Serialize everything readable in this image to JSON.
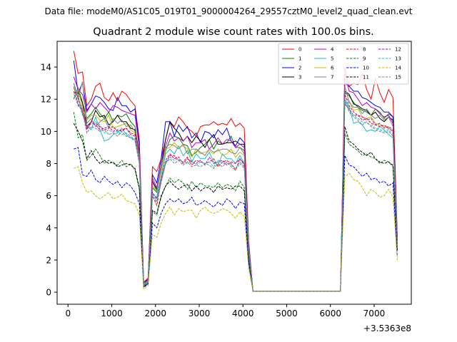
{
  "figure": {
    "header": "Data file: modeM0/AS1C05_019T01_9000004264_29557cztM0_level2_quad_clean.evt"
  },
  "chart_data": {
    "type": "line",
    "title": "Quadrant 2 module wise count rates with 100.0s bins.",
    "xlabel": "",
    "ylabel": "",
    "x_offset_label": "+3.5363e8",
    "xlim": [
      -250,
      7850
    ],
    "ylim": [
      -0.75,
      15.6
    ],
    "x_ticks": [
      0,
      1000,
      2000,
      3000,
      4000,
      5000,
      6000,
      7000
    ],
    "y_ticks": [
      0,
      2,
      4,
      6,
      8,
      10,
      12,
      14
    ],
    "x_tick_labels": [
      "0",
      "1000",
      "2000",
      "3000",
      "4000",
      "5000",
      "6000",
      "7000"
    ],
    "y_tick_labels": [
      "0",
      "2",
      "4",
      "6",
      "8",
      "10",
      "12",
      "14"
    ],
    "legend_position": "top-right",
    "legend_columns": 4,
    "x": [
      130,
      230,
      330,
      430,
      530,
      630,
      730,
      830,
      930,
      1030,
      1130,
      1230,
      1330,
      1430,
      1530,
      1630,
      1730,
      1830,
      1930,
      2030,
      2130,
      2230,
      2330,
      2430,
      2530,
      2630,
      2730,
      2830,
      2930,
      3030,
      3130,
      3230,
      3330,
      3430,
      3530,
      3630,
      3730,
      3830,
      3930,
      4030,
      4130,
      4230,
      4330,
      4430,
      6230,
      6330,
      6430,
      6530,
      6630,
      6730,
      6830,
      6930,
      7030,
      7130,
      7230,
      7330,
      7430,
      7530
    ],
    "series": [
      {
        "name": "0",
        "color": "#ff0000",
        "dashed": false,
        "values": [
          15.0,
          13.6,
          13.7,
          11.6,
          12.0,
          12.8,
          13.0,
          12.1,
          11.9,
          12.4,
          11.9,
          12.5,
          12.3,
          11.9,
          11.6,
          9.5,
          0.6,
          0.9,
          7.8,
          7.5,
          8.3,
          9.5,
          10.6,
          10.3,
          10.9,
          10.6,
          10.2,
          10.0,
          9.7,
          10.3,
          10.4,
          10.4,
          10.6,
          10.4,
          10.5,
          10.4,
          10.8,
          10.3,
          10.5,
          10.2,
          3.2,
          0.05,
          0.05,
          0.05,
          0.05,
          14.0,
          12.8,
          13.0,
          12.9,
          13.6,
          12.6,
          12.0,
          13.3,
          12.4,
          11.8,
          12.6,
          12.1,
          3.5
        ]
      },
      {
        "name": "1",
        "color": "#008000",
        "dashed": false,
        "values": [
          12.0,
          12.7,
          11.8,
          10.8,
          11.1,
          11.5,
          11.1,
          10.8,
          11.2,
          10.6,
          11.0,
          10.9,
          11.1,
          10.6,
          10.3,
          8.4,
          0.5,
          0.8,
          6.5,
          6.2,
          7.6,
          8.8,
          9.5,
          9.7,
          9.6,
          9.2,
          9.1,
          8.5,
          8.7,
          9.0,
          9.2,
          9.5,
          8.9,
          9.4,
          9.2,
          9.3,
          9.7,
          9.0,
          9.0,
          8.8,
          2.8,
          0.05,
          0.05,
          0.05,
          0.05,
          12.4,
          12.2,
          11.8,
          11.5,
          11.3,
          11.2,
          11.0,
          11.4,
          11.2,
          10.8,
          11.1,
          10.9,
          3.2
        ]
      },
      {
        "name": "2",
        "color": "#0000ff",
        "dashed": false,
        "values": [
          14.4,
          12.4,
          13.0,
          11.3,
          11.7,
          12.2,
          12.1,
          11.8,
          11.4,
          11.3,
          12.1,
          11.6,
          11.6,
          11.2,
          11.4,
          9.2,
          0.6,
          0.8,
          7.3,
          6.8,
          8.3,
          10.6,
          10.6,
          9.7,
          10.4,
          10.0,
          10.3,
          9.6,
          9.9,
          9.3,
          10.0,
          9.9,
          9.6,
          10.1,
          9.8,
          10.2,
          9.4,
          9.1,
          9.6,
          9.3,
          3.0,
          0.05,
          0.05,
          0.05,
          0.05,
          13.0,
          12.8,
          12.5,
          12.5,
          12.1,
          12.0,
          11.8,
          11.6,
          11.5,
          11.2,
          11.2,
          10.9,
          3.4
        ]
      },
      {
        "name": "3",
        "color": "#000000",
        "dashed": false,
        "values": [
          12.4,
          12.4,
          11.8,
          10.3,
          10.6,
          11.3,
          10.9,
          11.0,
          10.4,
          10.6,
          11.0,
          10.6,
          10.6,
          10.2,
          10.1,
          8.7,
          0.4,
          0.7,
          6.9,
          6.4,
          7.9,
          9.5,
          10.6,
          10.2,
          9.9,
          9.4,
          9.7,
          9.3,
          9.7,
          9.4,
          9.0,
          9.5,
          9.8,
          9.2,
          9.2,
          9.3,
          9.3,
          9.4,
          9.2,
          9.2,
          2.9,
          0.05,
          0.05,
          0.05,
          0.05,
          12.5,
          12.3,
          11.7,
          11.6,
          11.4,
          11.3,
          11.0,
          11.2,
          10.8,
          10.6,
          10.9,
          10.7,
          3.2
        ]
      },
      {
        "name": "4",
        "color": "#bf00bf",
        "dashed": false,
        "values": [
          13.4,
          12.6,
          12.3,
          11.2,
          11.7,
          11.4,
          11.8,
          11.5,
          11.2,
          11.6,
          11.5,
          11.3,
          11.2,
          11.1,
          11.0,
          9.0,
          0.5,
          0.7,
          7.1,
          6.5,
          7.9,
          9.1,
          9.9,
          9.4,
          9.6,
          9.4,
          9.7,
          9.0,
          9.3,
          9.3,
          9.5,
          8.9,
          9.2,
          9.6,
          9.2,
          9.5,
          9.4,
          9.0,
          9.2,
          9.0,
          2.9,
          0.05,
          0.05,
          0.05,
          0.05,
          13.6,
          12.5,
          12.4,
          12.0,
          11.6,
          11.8,
          11.5,
          11.4,
          11.1,
          10.9,
          11.0,
          10.5,
          3.2
        ]
      },
      {
        "name": "5",
        "color": "#17becf",
        "dashed": false,
        "values": [
          13.0,
          12.2,
          11.1,
          10.3,
          10.1,
          10.9,
          10.1,
          9.4,
          9.5,
          9.8,
          9.9,
          10.2,
          9.8,
          9.6,
          9.5,
          8.2,
          0.4,
          0.7,
          6.1,
          5.9,
          7.2,
          8.6,
          8.9,
          8.6,
          9.1,
          8.5,
          8.8,
          8.1,
          8.6,
          8.3,
          8.3,
          8.7,
          8.1,
          7.9,
          8.6,
          8.3,
          8.3,
          8.0,
          8.5,
          8.0,
          2.6,
          0.05,
          0.05,
          0.05,
          0.05,
          12.0,
          11.5,
          10.5,
          10.6,
          10.4,
          10.0,
          10.1,
          10.0,
          10.3,
          10.1,
          9.8,
          9.6,
          3.0
        ]
      },
      {
        "name": "6",
        "color": "#bfbf00",
        "dashed": false,
        "values": [
          12.1,
          12.6,
          11.5,
          10.7,
          11.0,
          11.0,
          10.7,
          10.6,
          11.0,
          10.2,
          10.3,
          10.4,
          10.5,
          10.1,
          9.9,
          8.3,
          0.5,
          0.7,
          6.6,
          6.3,
          7.5,
          8.9,
          9.0,
          9.3,
          9.0,
          9.1,
          8.9,
          8.4,
          8.9,
          8.6,
          8.7,
          8.8,
          8.6,
          8.9,
          8.5,
          8.6,
          8.9,
          8.4,
          8.7,
          8.5,
          2.7,
          0.05,
          0.05,
          0.05,
          0.05,
          12.1,
          11.9,
          11.3,
          11.4,
          10.9,
          10.8,
          10.9,
          10.5,
          10.4,
          10.3,
          10.2,
          10.0,
          3.1
        ]
      },
      {
        "name": "7",
        "color": "#808080",
        "dashed": false,
        "values": [
          13.0,
          12.0,
          13.1,
          10.5,
          10.8,
          10.3,
          10.6,
          10.8,
          10.2,
          10.8,
          10.5,
          10.7,
          10.3,
          10.4,
          10.0,
          8.5,
          0.5,
          0.7,
          6.8,
          6.3,
          7.8,
          9.0,
          9.2,
          9.1,
          8.9,
          9.2,
          8.6,
          8.9,
          8.9,
          8.7,
          8.5,
          8.9,
          8.7,
          8.8,
          8.9,
          8.9,
          8.7,
          8.6,
          9.0,
          8.6,
          2.8,
          0.05,
          0.05,
          0.05,
          0.05,
          12.8,
          11.8,
          11.5,
          11.5,
          11.1,
          11.4,
          11.0,
          10.8,
          11.0,
          10.7,
          10.9,
          10.3,
          3.2
        ]
      },
      {
        "name": "8",
        "color": "#ff0000",
        "dashed": true,
        "values": [
          12.7,
          12.1,
          11.3,
          10.2,
          10.5,
          10.5,
          10.3,
          10.1,
          10.2,
          10.3,
          10.0,
          10.1,
          10.2,
          9.9,
          9.8,
          8.0,
          0.4,
          0.6,
          6.0,
          5.4,
          6.9,
          8.0,
          8.5,
          8.5,
          8.2,
          8.1,
          8.4,
          7.9,
          8.2,
          8.1,
          8.0,
          8.1,
          8.3,
          7.8,
          8.1,
          8.2,
          8.0,
          7.6,
          8.3,
          7.9,
          2.5,
          0.05,
          0.05,
          0.05,
          0.05,
          11.7,
          11.4,
          11.0,
          11.0,
          10.7,
          10.8,
          10.5,
          10.4,
          10.3,
          10.4,
          10.2,
          10.0,
          3.0
        ]
      },
      {
        "name": "9",
        "color": "#008000",
        "dashed": true,
        "values": [
          11.2,
          9.6,
          9.8,
          8.2,
          8.5,
          8.9,
          8.5,
          8.0,
          8.2,
          8.0,
          7.9,
          8.2,
          7.8,
          8.0,
          7.6,
          6.4,
          0.35,
          0.55,
          5.0,
          4.8,
          5.9,
          6.6,
          7.1,
          6.8,
          7.0,
          6.8,
          6.4,
          6.9,
          6.5,
          6.8,
          6.6,
          6.6,
          6.5,
          6.8,
          6.5,
          6.7,
          6.6,
          6.3,
          6.9,
          6.5,
          2.1,
          0.05,
          0.05,
          0.05,
          0.05,
          9.9,
          9.2,
          9.0,
          8.8,
          8.5,
          8.6,
          8.4,
          8.3,
          8.0,
          8.2,
          8.1,
          7.8,
          2.6
        ]
      },
      {
        "name": "10",
        "color": "#0000ff",
        "dashed": true,
        "values": [
          8.9,
          9.0,
          7.3,
          7.2,
          7.6,
          7.0,
          6.8,
          7.2,
          6.9,
          6.7,
          6.9,
          6.5,
          6.8,
          6.6,
          6.2,
          5.5,
          0.3,
          0.5,
          4.3,
          4.0,
          4.9,
          5.5,
          5.8,
          5.6,
          5.8,
          5.5,
          5.6,
          5.9,
          5.4,
          5.5,
          5.7,
          5.5,
          5.3,
          5.6,
          5.4,
          5.8,
          5.6,
          5.2,
          5.6,
          5.5,
          1.8,
          0.05,
          0.05,
          0.05,
          0.05,
          8.5,
          7.9,
          7.8,
          7.5,
          7.2,
          7.4,
          7.0,
          7.1,
          6.8,
          6.9,
          6.6,
          6.8,
          2.2
        ]
      },
      {
        "name": "11",
        "color": "#000000",
        "dashed": true,
        "values": [
          10.5,
          10.0,
          9.4,
          8.3,
          8.8,
          8.3,
          8.0,
          8.2,
          8.0,
          8.1,
          7.8,
          7.9,
          8.0,
          7.9,
          7.7,
          6.5,
          0.35,
          0.55,
          5.1,
          4.9,
          6.0,
          6.6,
          6.9,
          6.6,
          6.4,
          6.6,
          6.7,
          6.3,
          6.6,
          6.3,
          6.5,
          6.5,
          6.2,
          6.6,
          6.4,
          6.5,
          6.4,
          6.6,
          6.6,
          6.3,
          2.0,
          0.05,
          0.05,
          0.05,
          0.05,
          10.3,
          9.4,
          9.2,
          8.9,
          8.7,
          8.5,
          8.7,
          8.3,
          8.1,
          8.0,
          8.1,
          7.9,
          2.6
        ]
      },
      {
        "name": "12",
        "color": "#bf00bf",
        "dashed": true,
        "values": [
          12.5,
          11.6,
          11.4,
          10.1,
          10.6,
          10.4,
          10.1,
          10.2,
          10.3,
          10.0,
          10.1,
          10.0,
          10.2,
          9.8,
          9.7,
          8.2,
          0.4,
          0.6,
          6.2,
          5.8,
          7.1,
          8.2,
          8.6,
          8.3,
          8.4,
          8.0,
          8.3,
          8.1,
          8.0,
          8.2,
          7.9,
          8.4,
          8.0,
          8.1,
          8.2,
          7.9,
          8.1,
          8.0,
          8.3,
          8.0,
          2.6,
          0.05,
          0.05,
          0.05,
          0.05,
          12.3,
          11.6,
          11.2,
          11.0,
          10.9,
          10.7,
          10.8,
          10.4,
          10.5,
          10.2,
          10.3,
          10.1,
          3.0
        ]
      },
      {
        "name": "13",
        "color": "#17becf",
        "dashed": true,
        "values": [
          12.3,
          11.9,
          11.0,
          10.4,
          10.2,
          10.6,
          10.4,
          9.9,
          10.1,
          9.9,
          10.0,
          9.8,
          9.9,
          9.7,
          9.5,
          8.1,
          0.4,
          0.6,
          6.1,
          5.7,
          7.0,
          8.1,
          8.4,
          8.2,
          8.3,
          8.1,
          8.0,
          8.2,
          7.9,
          8.1,
          8.0,
          8.1,
          7.8,
          8.2,
          8.0,
          8.0,
          7.9,
          7.7,
          8.1,
          7.8,
          2.5,
          0.05,
          0.05,
          0.05,
          0.05,
          12.0,
          11.3,
          11.0,
          10.8,
          10.6,
          10.5,
          10.4,
          10.2,
          10.1,
          10.0,
          10.1,
          9.8,
          3.0
        ]
      },
      {
        "name": "14",
        "color": "#bfbf00",
        "dashed": true,
        "values": [
          7.7,
          7.8,
          6.8,
          6.2,
          6.3,
          6.0,
          5.8,
          6.0,
          6.2,
          5.8,
          5.9,
          6.1,
          5.7,
          5.6,
          5.5,
          4.8,
          0.2,
          0.4,
          3.6,
          3.4,
          4.3,
          4.9,
          5.3,
          4.8,
          5.2,
          5.0,
          5.1,
          5.1,
          4.6,
          5.1,
          5.3,
          5.0,
          4.9,
          5.0,
          5.2,
          5.1,
          4.9,
          4.6,
          5.0,
          4.7,
          1.5,
          0.05,
          0.05,
          0.05,
          0.05,
          7.2,
          7.4,
          7.0,
          6.9,
          6.5,
          6.0,
          6.4,
          6.2,
          5.9,
          6.0,
          6.4,
          5.9,
          2.0
        ]
      },
      {
        "name": "15",
        "color": "#808080",
        "dashed": true,
        "values": [
          12.8,
          11.7,
          11.2,
          9.9,
          10.3,
          10.2,
          10.0,
          10.1,
          9.8,
          9.9,
          9.7,
          10.0,
          9.7,
          9.6,
          9.4,
          8.0,
          0.4,
          0.6,
          6.0,
          5.6,
          6.8,
          8.0,
          8.3,
          8.0,
          8.2,
          7.9,
          8.1,
          7.8,
          7.9,
          7.8,
          8.0,
          7.9,
          7.7,
          8.0,
          7.8,
          8.1,
          7.8,
          7.6,
          8.0,
          7.7,
          2.5,
          0.05,
          0.05,
          0.05,
          0.05,
          11.9,
          11.2,
          10.9,
          10.7,
          10.4,
          10.6,
          10.3,
          10.1,
          10.0,
          9.9,
          10.0,
          9.7,
          2.9
        ]
      }
    ]
  }
}
